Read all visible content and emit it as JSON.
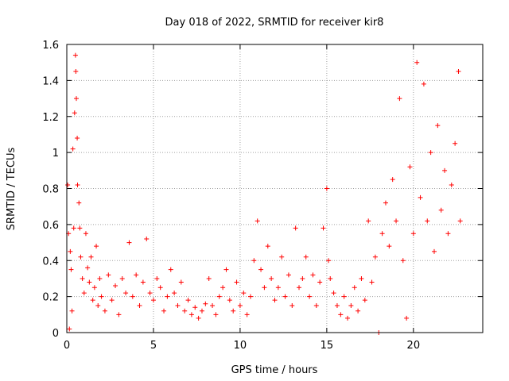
{
  "chart_data": {
    "type": "scatter",
    "title": "Day 018 of 2022, SRMTID for receiver kir8",
    "xlabel": "GPS time / hours",
    "ylabel": "SRMTID / TECUs",
    "xlim": [
      0,
      24
    ],
    "ylim": [
      0,
      1.6
    ],
    "xticks": [
      0,
      5,
      10,
      15,
      20
    ],
    "xtick_labels": [
      "0",
      "5",
      "10",
      "15",
      "20"
    ],
    "yticks": [
      0,
      0.2,
      0.4,
      0.6,
      0.8,
      1,
      1.2,
      1.4,
      1.6
    ],
    "ytick_labels": [
      "0",
      "0.2",
      "0.4",
      "0.6",
      "0.8",
      "1",
      "1.2",
      "1.4",
      "1.6"
    ],
    "grid": true,
    "marker": "+",
    "color": "#ff0000",
    "series": [
      {
        "name": "SRMTID",
        "points": [
          [
            0.05,
            0.82
          ],
          [
            0.1,
            0.55
          ],
          [
            0.15,
            0.02
          ],
          [
            0.2,
            0.45
          ],
          [
            0.25,
            0.35
          ],
          [
            0.3,
            0.12
          ],
          [
            0.35,
            1.02
          ],
          [
            0.4,
            0.58
          ],
          [
            0.45,
            1.22
          ],
          [
            0.5,
            1.54
          ],
          [
            0.52,
            1.45
          ],
          [
            0.55,
            1.3
          ],
          [
            0.6,
            1.08
          ],
          [
            0.62,
            0.82
          ],
          [
            0.7,
            0.72
          ],
          [
            0.75,
            0.58
          ],
          [
            0.8,
            0.42
          ],
          [
            0.9,
            0.3
          ],
          [
            1.0,
            0.22
          ],
          [
            1.1,
            0.55
          ],
          [
            1.2,
            0.36
          ],
          [
            1.3,
            0.28
          ],
          [
            1.4,
            0.42
          ],
          [
            1.5,
            0.18
          ],
          [
            1.6,
            0.25
          ],
          [
            1.7,
            0.48
          ],
          [
            1.8,
            0.15
          ],
          [
            1.9,
            0.3
          ],
          [
            2.0,
            0.2
          ],
          [
            2.2,
            0.12
          ],
          [
            2.4,
            0.32
          ],
          [
            2.6,
            0.18
          ],
          [
            2.8,
            0.26
          ],
          [
            3.0,
            0.1
          ],
          [
            3.2,
            0.3
          ],
          [
            3.4,
            0.22
          ],
          [
            3.6,
            0.5
          ],
          [
            3.8,
            0.2
          ],
          [
            4.0,
            0.32
          ],
          [
            4.2,
            0.15
          ],
          [
            4.4,
            0.28
          ],
          [
            4.6,
            0.52
          ],
          [
            4.8,
            0.22
          ],
          [
            5.0,
            0.18
          ],
          [
            5.2,
            0.3
          ],
          [
            5.4,
            0.25
          ],
          [
            5.6,
            0.12
          ],
          [
            5.8,
            0.2
          ],
          [
            6.0,
            0.35
          ],
          [
            6.2,
            0.22
          ],
          [
            6.4,
            0.15
          ],
          [
            6.6,
            0.28
          ],
          [
            6.8,
            0.12
          ],
          [
            7.0,
            0.18
          ],
          [
            7.2,
            0.1
          ],
          [
            7.4,
            0.14
          ],
          [
            7.6,
            0.08
          ],
          [
            7.8,
            0.12
          ],
          [
            8.0,
            0.16
          ],
          [
            8.2,
            0.3
          ],
          [
            8.4,
            0.15
          ],
          [
            8.6,
            0.1
          ],
          [
            8.8,
            0.2
          ],
          [
            9.0,
            0.25
          ],
          [
            9.2,
            0.35
          ],
          [
            9.4,
            0.18
          ],
          [
            9.6,
            0.12
          ],
          [
            9.8,
            0.28
          ],
          [
            10.0,
            0.15
          ],
          [
            10.2,
            0.22
          ],
          [
            10.4,
            0.1
          ],
          [
            10.6,
            0.2
          ],
          [
            10.8,
            0.4
          ],
          [
            11.0,
            0.62
          ],
          [
            11.2,
            0.35
          ],
          [
            11.4,
            0.25
          ],
          [
            11.6,
            0.48
          ],
          [
            11.8,
            0.3
          ],
          [
            12.0,
            0.18
          ],
          [
            12.2,
            0.25
          ],
          [
            12.4,
            0.42
          ],
          [
            12.6,
            0.2
          ],
          [
            12.8,
            0.32
          ],
          [
            13.0,
            0.15
          ],
          [
            13.2,
            0.58
          ],
          [
            13.4,
            0.25
          ],
          [
            13.6,
            0.3
          ],
          [
            13.8,
            0.42
          ],
          [
            14.0,
            0.2
          ],
          [
            14.2,
            0.32
          ],
          [
            14.4,
            0.15
          ],
          [
            14.6,
            0.28
          ],
          [
            14.8,
            0.58
          ],
          [
            15.0,
            0.8
          ],
          [
            15.1,
            0.4
          ],
          [
            15.2,
            0.3
          ],
          [
            15.4,
            0.22
          ],
          [
            15.6,
            0.15
          ],
          [
            15.8,
            0.1
          ],
          [
            16.0,
            0.2
          ],
          [
            16.2,
            0.08
          ],
          [
            16.4,
            0.15
          ],
          [
            16.6,
            0.25
          ],
          [
            16.8,
            0.12
          ],
          [
            17.0,
            0.3
          ],
          [
            17.2,
            0.18
          ],
          [
            17.4,
            0.62
          ],
          [
            17.6,
            0.28
          ],
          [
            17.8,
            0.42
          ],
          [
            18.0,
            0.0
          ],
          [
            18.2,
            0.55
          ],
          [
            18.4,
            0.72
          ],
          [
            18.6,
            0.48
          ],
          [
            18.8,
            0.85
          ],
          [
            19.0,
            0.62
          ],
          [
            19.2,
            1.3
          ],
          [
            19.4,
            0.4
          ],
          [
            19.6,
            0.08
          ],
          [
            19.8,
            0.92
          ],
          [
            20.0,
            0.55
          ],
          [
            20.2,
            1.5
          ],
          [
            20.4,
            0.75
          ],
          [
            20.6,
            1.38
          ],
          [
            20.8,
            0.62
          ],
          [
            21.0,
            1.0
          ],
          [
            21.2,
            0.45
          ],
          [
            21.4,
            1.15
          ],
          [
            21.6,
            0.68
          ],
          [
            21.8,
            0.9
          ],
          [
            22.0,
            0.55
          ],
          [
            22.2,
            0.82
          ],
          [
            22.4,
            1.05
          ],
          [
            22.6,
            1.45
          ],
          [
            22.7,
            0.62
          ]
        ]
      }
    ]
  }
}
